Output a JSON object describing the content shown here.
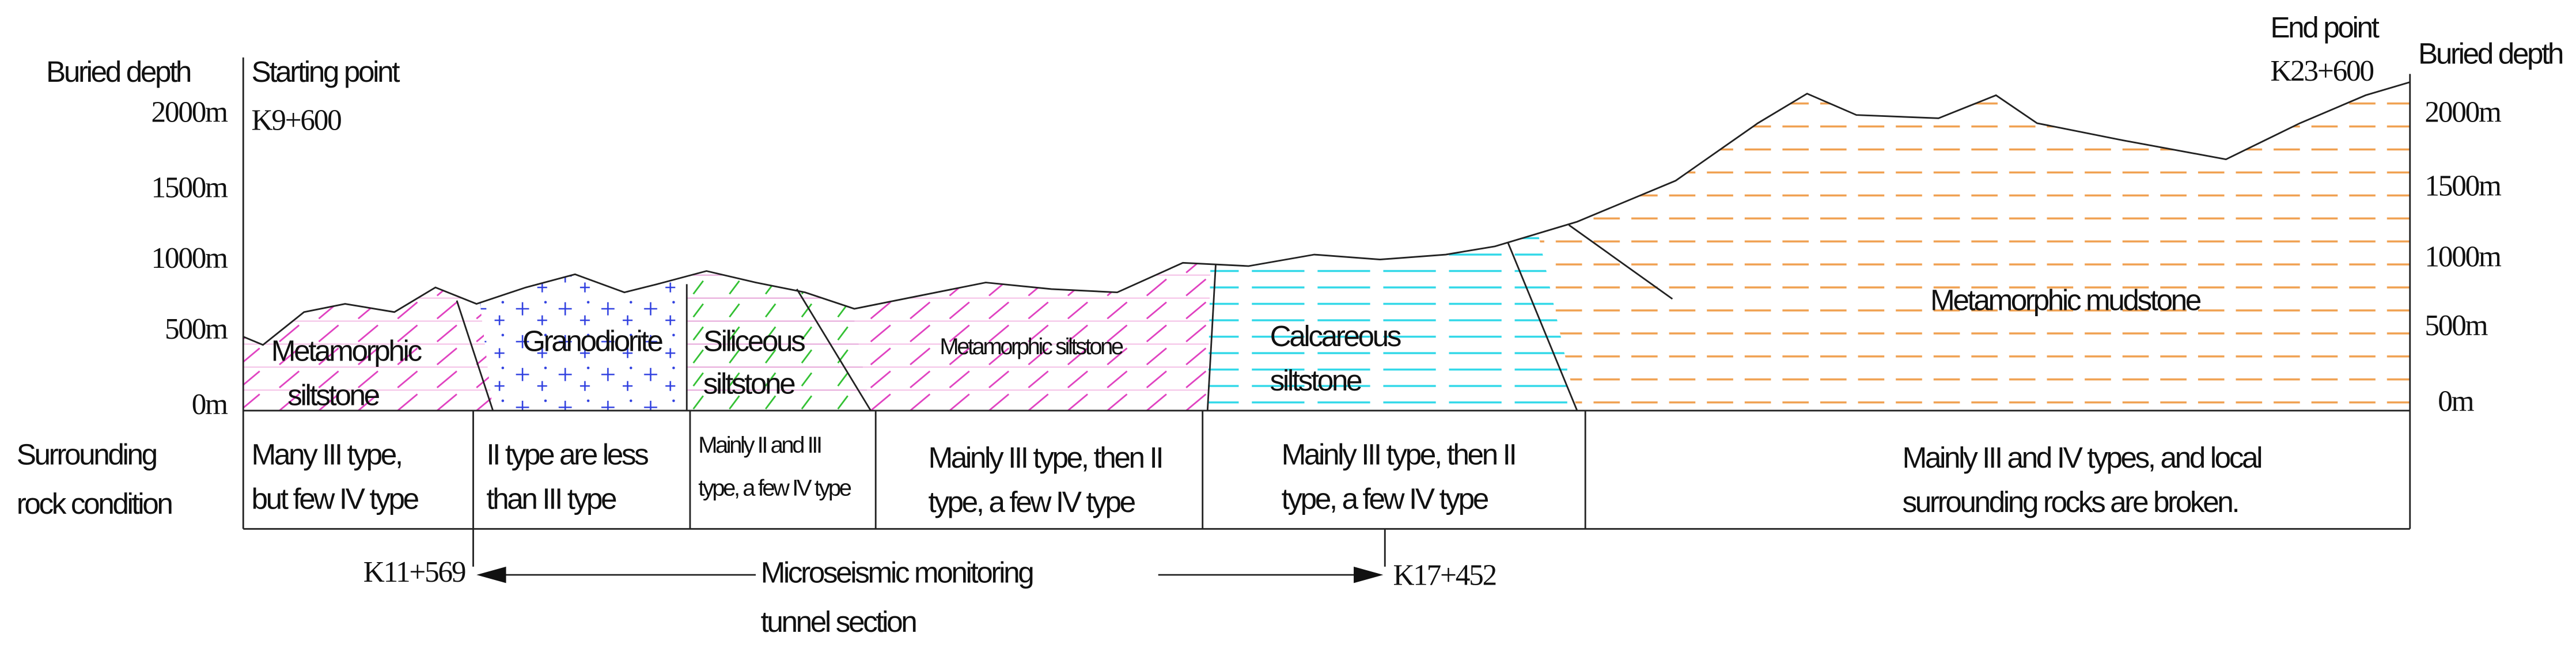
{
  "left_axis": {
    "title": "Buried depth",
    "ticks": [
      "2000m",
      "1500m",
      "1000m",
      "500m",
      "0m"
    ]
  },
  "right_axis": {
    "title": "Buried depth",
    "ticks": [
      "2000m",
      "1500m",
      "1000m",
      "500m",
      "0m"
    ]
  },
  "start": {
    "label": "Starting point",
    "chainage": "K9+600"
  },
  "end": {
    "label": "End point",
    "chainage": "K23+600"
  },
  "zones": [
    {
      "lines": [
        "Metamorphic",
        "siltstone"
      ]
    },
    {
      "lines": [
        "Granodiorite"
      ]
    },
    {
      "lines": [
        "Siliceous",
        "siltstone"
      ]
    },
    {
      "lines": [
        "Metamorphic siltstone"
      ]
    },
    {
      "lines": [
        "Calcareous",
        "siltstone"
      ]
    },
    {
      "lines": [
        "Metamorphic mudstone"
      ]
    }
  ],
  "table": {
    "row_header": [
      "Surrounding",
      "rock condition"
    ],
    "cells": [
      [
        "Many III type,",
        "but few IV type"
      ],
      [
        "II type are less",
        "than III type"
      ],
      [
        "Mainly II and III",
        "type, a few IV type"
      ],
      [
        "Mainly III type, then II",
        "type, a few IV type"
      ],
      [
        "Mainly III type, then II",
        "type, a few IV type"
      ],
      [
        "Mainly III and IV types, and local",
        "surrounding rocks are broken."
      ]
    ]
  },
  "monitoring": {
    "from": "K11+569",
    "to": "K17+452",
    "label": [
      "Microseismic monitoring",
      "tunnel section"
    ]
  }
}
